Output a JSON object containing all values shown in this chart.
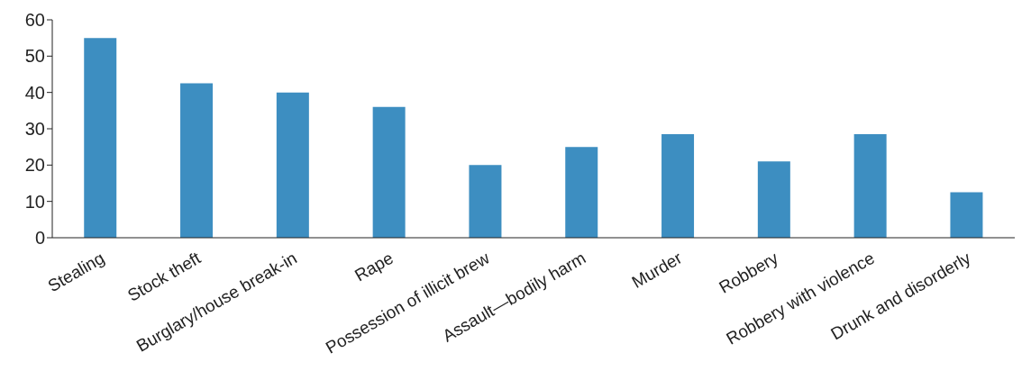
{
  "chart_data": {
    "type": "bar",
    "categories": [
      "Stealing",
      "Stock theft",
      "Burglary/house break-in",
      "Rape",
      "Possession of illicit brew",
      "Assault—bodily harm",
      "Murder",
      "Robbery",
      "Robbery with violence",
      "Drunk and disorderly"
    ],
    "values": [
      55,
      42.5,
      40,
      36,
      20,
      25,
      28.5,
      21,
      28.5,
      12.5
    ],
    "color": "#3d8ec1",
    "ylim": [
      0,
      60
    ],
    "yticks": [
      0,
      10,
      20,
      30,
      40,
      50,
      60
    ],
    "grid": false
  }
}
